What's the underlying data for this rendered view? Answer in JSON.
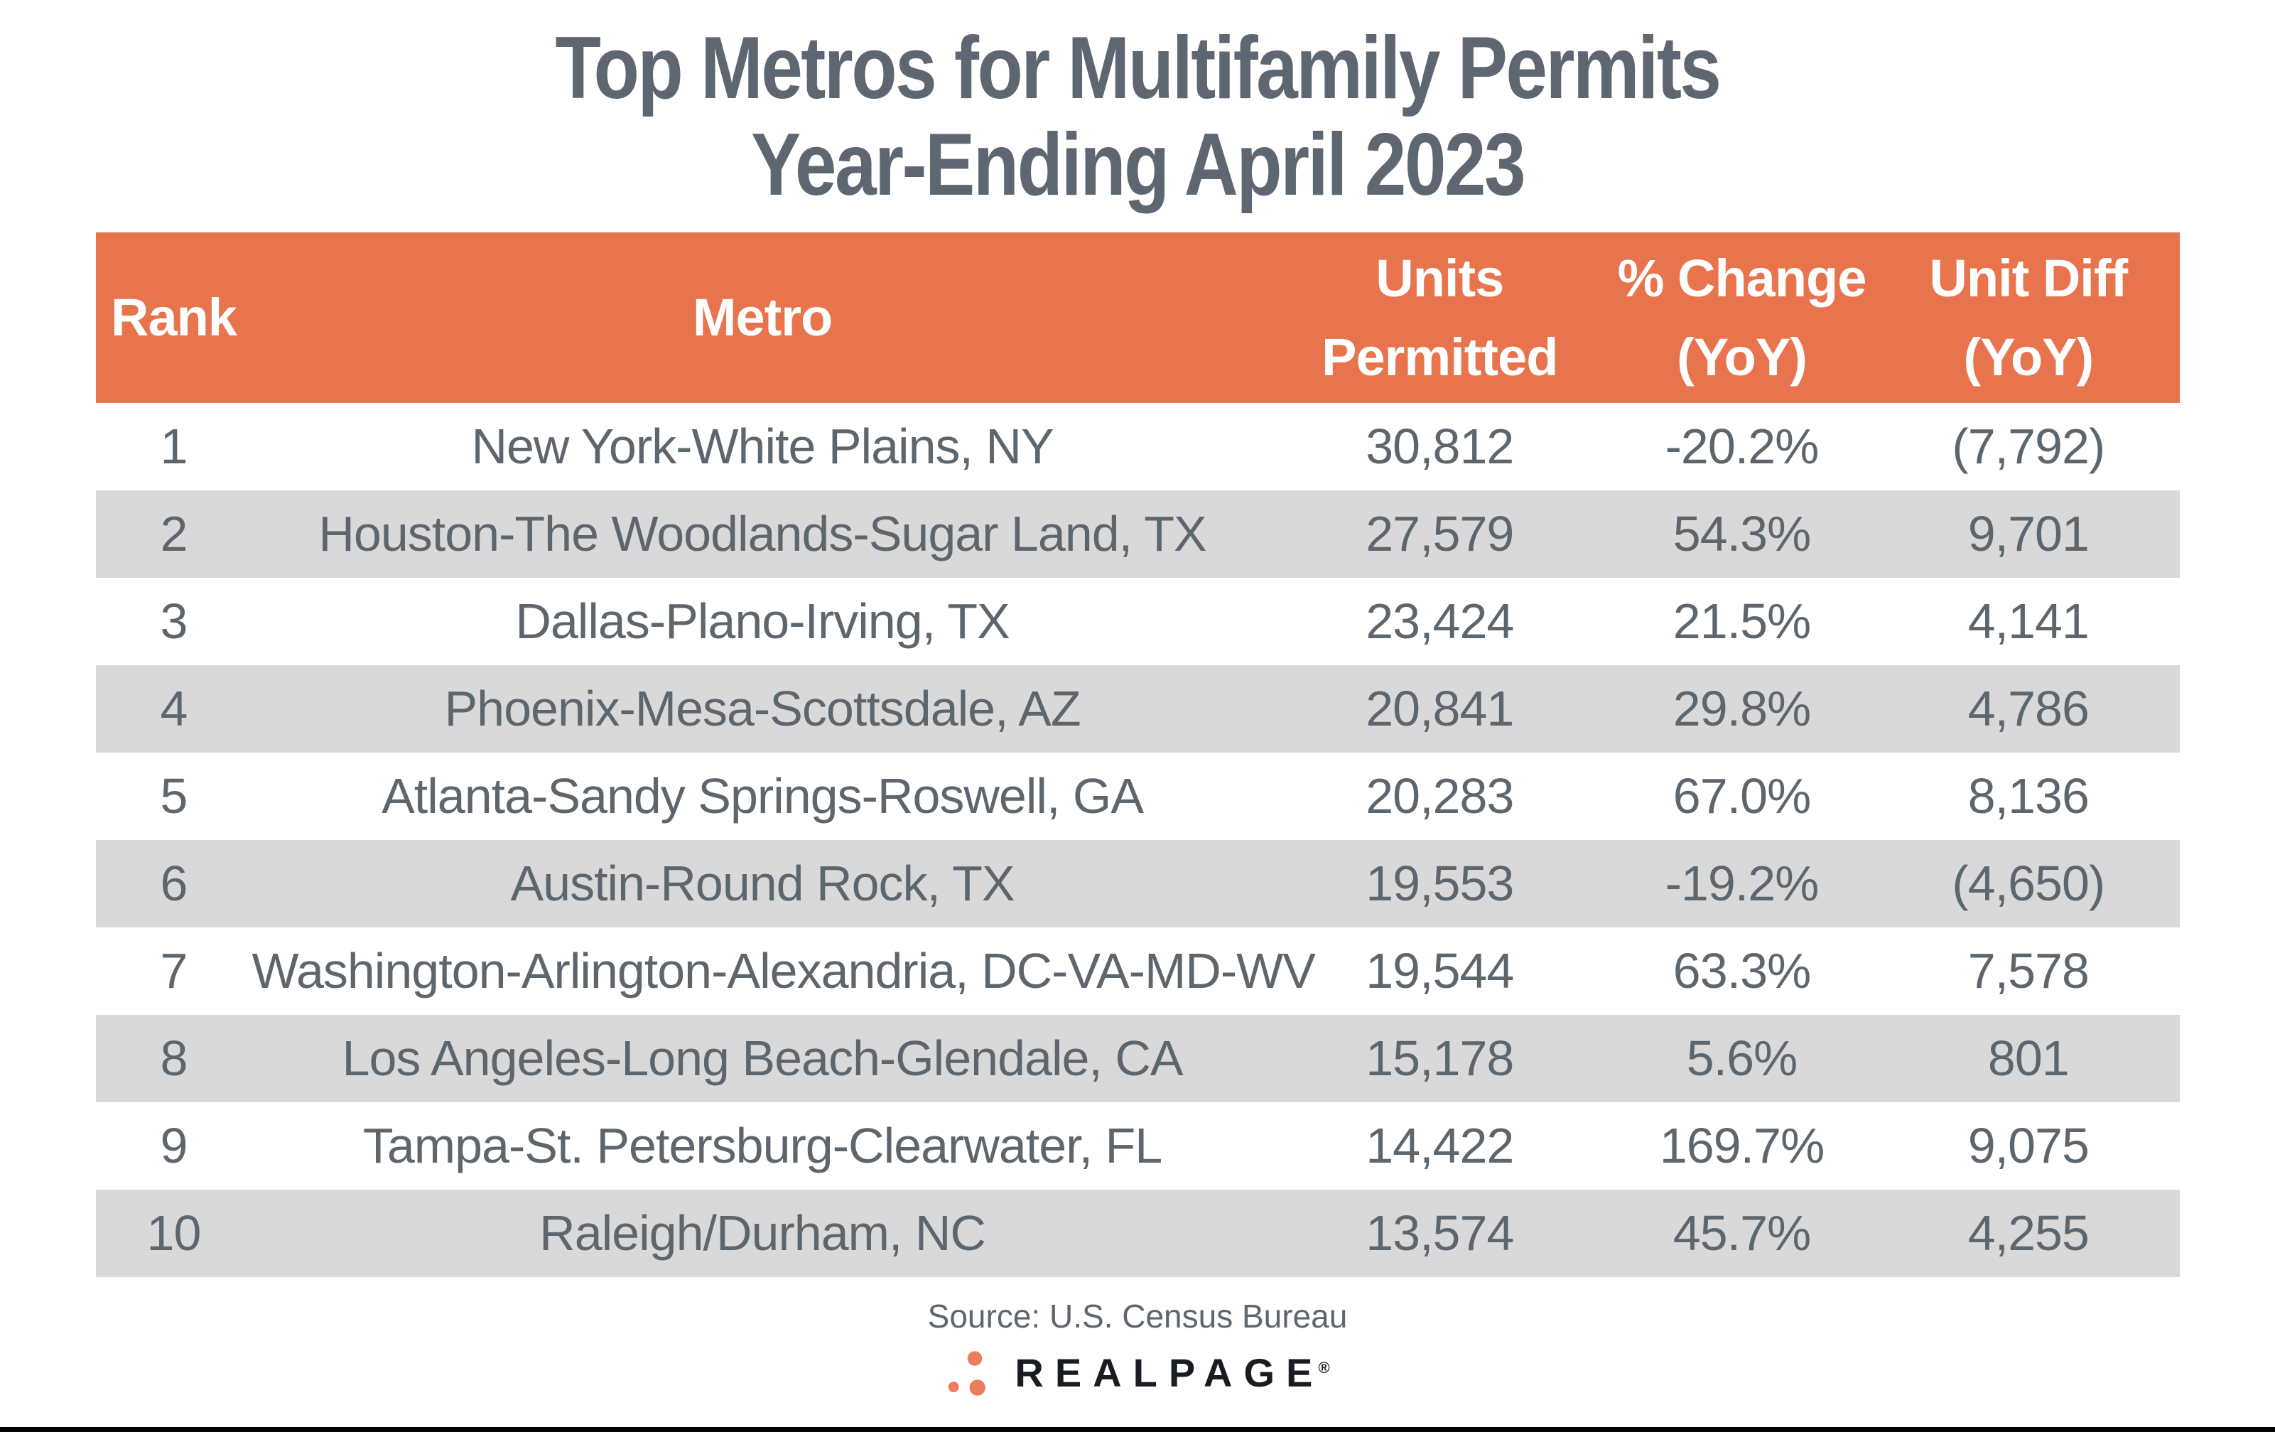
{
  "title": {
    "line1": "Top Metros for Multifamily Permits",
    "line2": "Year-Ending April 2023"
  },
  "table": {
    "headers": {
      "rank": "Rank",
      "metro": "Metro",
      "units_line1": "Units",
      "units_line2": "Permitted",
      "change_line1": "% Change",
      "change_line2": "(YoY)",
      "diff_line1": "Unit Diff",
      "diff_line2": "(YoY)"
    },
    "rows": [
      {
        "rank": "1",
        "metro": "New York-White Plains, NY",
        "units": "30,812",
        "change": "-20.2%",
        "diff": "(7,792)"
      },
      {
        "rank": "2",
        "metro": "Houston-The Woodlands-Sugar Land, TX",
        "units": "27,579",
        "change": "54.3%",
        "diff": "9,701"
      },
      {
        "rank": "3",
        "metro": "Dallas-Plano-Irving, TX",
        "units": "23,424",
        "change": "21.5%",
        "diff": "4,141"
      },
      {
        "rank": "4",
        "metro": "Phoenix-Mesa-Scottsdale, AZ",
        "units": "20,841",
        "change": "29.8%",
        "diff": "4,786"
      },
      {
        "rank": "5",
        "metro": "Atlanta-Sandy Springs-Roswell, GA",
        "units": "20,283",
        "change": "67.0%",
        "diff": "8,136"
      },
      {
        "rank": "6",
        "metro": "Austin-Round Rock, TX",
        "units": "19,553",
        "change": "-19.2%",
        "diff": "(4,650)"
      },
      {
        "rank": "7",
        "metro": "Washington-Arlington-Alexandria, DC-VA-MD-WV",
        "units": "19,544",
        "change": "63.3%",
        "diff": "7,578"
      },
      {
        "rank": "8",
        "metro": "Los Angeles-Long Beach-Glendale, CA",
        "units": "15,178",
        "change": "5.6%",
        "diff": "801"
      },
      {
        "rank": "9",
        "metro": "Tampa-St. Petersburg-Clearwater, FL",
        "units": "14,422",
        "change": "169.7%",
        "diff": "9,075"
      },
      {
        "rank": "10",
        "metro": "Raleigh/Durham, NC",
        "units": "13,574",
        "change": "45.7%",
        "diff": "4,255"
      }
    ]
  },
  "footer": {
    "source": "Source: U.S. Census Bureau",
    "brand": "REALPAGE",
    "registered": "®"
  },
  "colors": {
    "header_bg": "#E8744E",
    "row_alt_bg": "#D9D9D9",
    "body_text": "#5E666D",
    "title_text": "#5E6771",
    "brand_text": "#191D22",
    "logo_dot": "#EC7D5A",
    "bottom_bar": "#000000"
  },
  "chart_data": {
    "type": "table",
    "title": "Top Metros for Multifamily Permits Year-Ending April 2023",
    "columns": [
      "Rank",
      "Metro",
      "Units Permitted",
      "% Change (YoY)",
      "Unit Diff (YoY)"
    ],
    "rows": [
      [
        1,
        "New York-White Plains, NY",
        30812,
        -20.2,
        -7792
      ],
      [
        2,
        "Houston-The Woodlands-Sugar Land, TX",
        27579,
        54.3,
        9701
      ],
      [
        3,
        "Dallas-Plano-Irving, TX",
        23424,
        21.5,
        4141
      ],
      [
        4,
        "Phoenix-Mesa-Scottsdale, AZ",
        20841,
        29.8,
        4786
      ],
      [
        5,
        "Atlanta-Sandy Springs-Roswell, GA",
        20283,
        67.0,
        8136
      ],
      [
        6,
        "Austin-Round Rock, TX",
        19553,
        -19.2,
        -4650
      ],
      [
        7,
        "Washington-Arlington-Alexandria, DC-VA-MD-WV",
        19544,
        63.3,
        7578
      ],
      [
        8,
        "Los Angeles-Long Beach-Glendale, CA",
        15178,
        5.6,
        801
      ],
      [
        9,
        "Tampa-St. Petersburg-Clearwater, FL",
        14422,
        169.7,
        9075
      ],
      [
        10,
        "Raleigh/Durham, NC",
        13574,
        45.7,
        4255
      ]
    ],
    "notes": "Negative Unit Diff values are shown in parentheses in the source image.",
    "source": "Source: U.S. Census Bureau"
  }
}
